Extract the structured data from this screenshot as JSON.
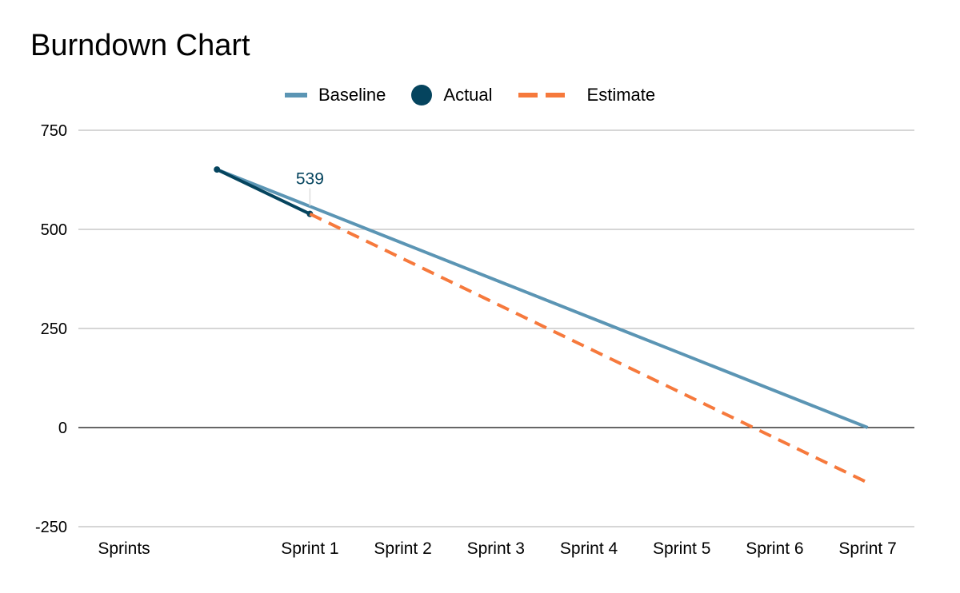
{
  "chart_data": {
    "type": "line",
    "title": "Burndown Chart",
    "categories": [
      "Sprints",
      "",
      "Sprint 1",
      "Sprint 2",
      "Sprint 3",
      "Sprint 4",
      "Sprint 5",
      "Sprint 6",
      "Sprint 7"
    ],
    "series": [
      {
        "name": "Baseline",
        "color": "#5b95b4",
        "style": "solid",
        "values": [
          null,
          651,
          558,
          465,
          372,
          279,
          186,
          93,
          0
        ]
      },
      {
        "name": "Actual",
        "color": "#05445e",
        "style": "solid-markers",
        "values": [
          null,
          651,
          539,
          null,
          null,
          null,
          null,
          null,
          null
        ]
      },
      {
        "name": "Estimate",
        "color": "#f6793c",
        "style": "dashed",
        "values": [
          null,
          null,
          539,
          426,
          313,
          200,
          87,
          -26,
          -139
        ]
      }
    ],
    "data_labels": [
      {
        "series": "Actual",
        "category": "Sprint 1",
        "text": "539"
      }
    ],
    "ylim": [
      -250,
      750
    ],
    "yticks": [
      "750",
      "500",
      "250",
      "0",
      "-250"
    ],
    "ytick_values": [
      750,
      500,
      250,
      0,
      -250
    ],
    "grid": true,
    "legend_position": "top"
  }
}
